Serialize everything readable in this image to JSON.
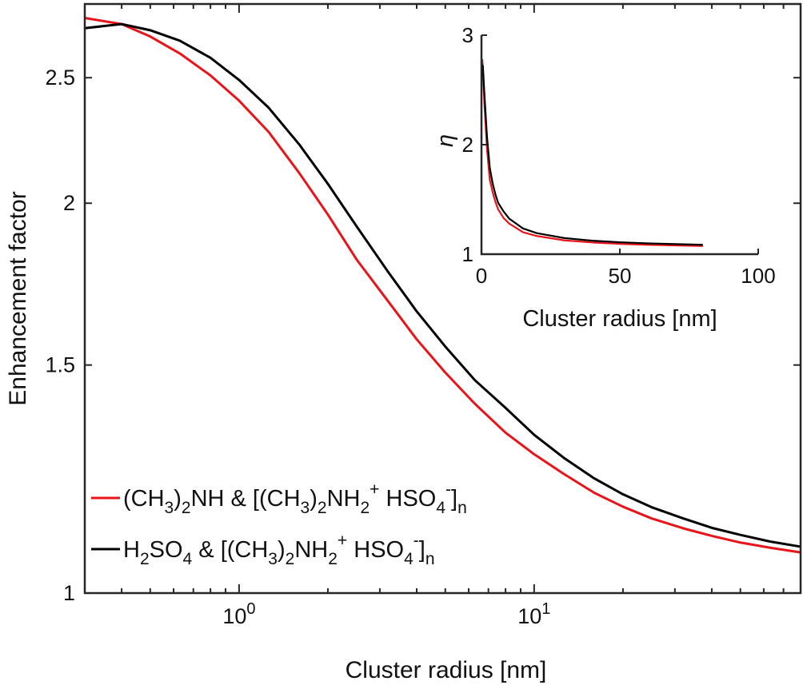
{
  "colors": {
    "red": "#e8141a",
    "black": "#000000",
    "axis": "#262626"
  },
  "main": {
    "ylabel": "Enhancement factor",
    "xlabel": "Cluster radius [nm]",
    "xscale": "log",
    "yscale": "log",
    "xlim": [
      0.3,
      80
    ],
    "ylim": [
      1,
      2.85
    ],
    "xticks": [
      {
        "value": 1,
        "base": "10",
        "exp": "0"
      },
      {
        "value": 10,
        "base": "10",
        "exp": "1"
      }
    ],
    "yticks": [
      {
        "value": 1,
        "label": "1"
      },
      {
        "value": 1.5,
        "label": "1.5"
      },
      {
        "value": 2,
        "label": "2"
      },
      {
        "value": 2.5,
        "label": "2.5"
      }
    ]
  },
  "legend": {
    "placement": "lower-left",
    "entries": [
      {
        "color_key": "red",
        "parts": [
          [
            "(CH",
            "n"
          ],
          [
            "3",
            "sub"
          ],
          [
            ")",
            "n"
          ],
          [
            "2",
            "sub"
          ],
          [
            "NH & [(CH",
            "n"
          ],
          [
            "3",
            "sub"
          ],
          [
            ")",
            "n"
          ],
          [
            "2",
            "sub"
          ],
          [
            "NH",
            "n"
          ],
          [
            "2",
            "sub"
          ],
          [
            "+",
            "sup"
          ],
          [
            " HSO",
            "n"
          ],
          [
            "4",
            "sub"
          ],
          [
            "-",
            "sup"
          ],
          [
            "]",
            "n"
          ],
          [
            "n",
            "sub"
          ]
        ]
      },
      {
        "color_key": "black",
        "parts": [
          [
            "H",
            "n"
          ],
          [
            "2",
            "sub"
          ],
          [
            "SO",
            "n"
          ],
          [
            "4",
            "sub"
          ],
          [
            " & [(CH",
            "n"
          ],
          [
            "3",
            "sub"
          ],
          [
            ")",
            "n"
          ],
          [
            "2",
            "sub"
          ],
          [
            "NH",
            "n"
          ],
          [
            "2",
            "sub"
          ],
          [
            "+",
            "sup"
          ],
          [
            " HSO",
            "n"
          ],
          [
            "4",
            "sub"
          ],
          [
            "-",
            "sup"
          ],
          [
            "]",
            "n"
          ],
          [
            "n",
            "sub"
          ]
        ]
      }
    ]
  },
  "inset": {
    "ylabel": "η",
    "xlabel": "Cluster radius [nm]",
    "xlim": [
      0,
      100
    ],
    "ylim": [
      1,
      3
    ],
    "xticks": [
      {
        "value": 0,
        "label": "0"
      },
      {
        "value": 50,
        "label": "50"
      },
      {
        "value": 100,
        "label": "100"
      }
    ],
    "yticks": [
      {
        "value": 1,
        "label": "1"
      },
      {
        "value": 2,
        "label": "2"
      },
      {
        "value": 3,
        "label": "3"
      }
    ]
  },
  "chart_data": [
    {
      "type": "line",
      "title": "",
      "xlabel": "Cluster radius [nm]",
      "ylabel": "Enhancement factor",
      "x_scale": "log",
      "y_scale": "log",
      "xlim": [
        0.3,
        80
      ],
      "ylim": [
        1,
        2.85
      ],
      "legend_placement": "lower-left",
      "series": [
        {
          "name": "(CH3)2NH & [(CH3)2NH2+ HSO4-]n",
          "color": "#e8141a",
          "x": [
            0.3,
            0.4,
            0.5,
            0.63,
            0.8,
            1.0,
            1.26,
            1.6,
            2.0,
            2.5,
            3.2,
            4.0,
            5.0,
            6.3,
            8.0,
            10,
            12.6,
            16,
            20,
            25,
            32,
            40,
            50,
            63,
            80
          ],
          "y": [
            2.78,
            2.75,
            2.69,
            2.61,
            2.51,
            2.4,
            2.27,
            2.11,
            1.96,
            1.81,
            1.68,
            1.57,
            1.48,
            1.4,
            1.33,
            1.28,
            1.236,
            1.195,
            1.166,
            1.142,
            1.122,
            1.107,
            1.094,
            1.084,
            1.075
          ]
        },
        {
          "name": "H2SO4 & [(CH3)2NH2+ HSO4-]n",
          "color": "#000000",
          "x": [
            0.3,
            0.4,
            0.5,
            0.63,
            0.8,
            1.0,
            1.26,
            1.6,
            2.0,
            2.5,
            3.2,
            4.0,
            5.0,
            6.3,
            8.0,
            10,
            12.6,
            16,
            20,
            25,
            32,
            40,
            50,
            63,
            80
          ],
          "y": [
            2.73,
            2.75,
            2.72,
            2.67,
            2.59,
            2.49,
            2.37,
            2.22,
            2.07,
            1.92,
            1.77,
            1.65,
            1.55,
            1.46,
            1.39,
            1.325,
            1.272,
            1.226,
            1.192,
            1.165,
            1.142,
            1.123,
            1.109,
            1.096,
            1.086
          ]
        }
      ]
    },
    {
      "type": "line",
      "title": "",
      "xlabel": "Cluster radius [nm]",
      "ylabel": "η",
      "xlim": [
        0,
        100
      ],
      "ylim": [
        1,
        3
      ],
      "series": [
        {
          "color": "#e8141a",
          "x": [
            0.3,
            0.5,
            1,
            2,
            3,
            4,
            5,
            6,
            8,
            10,
            15,
            20,
            30,
            40,
            50,
            60,
            70,
            80
          ],
          "y": [
            2.78,
            2.69,
            2.4,
            1.96,
            1.68,
            1.57,
            1.48,
            1.41,
            1.33,
            1.28,
            1.2,
            1.166,
            1.126,
            1.107,
            1.094,
            1.086,
            1.08,
            1.075
          ]
        },
        {
          "color": "#000000",
          "x": [
            0.3,
            0.5,
            1,
            2,
            3,
            4,
            5,
            6,
            8,
            10,
            15,
            20,
            30,
            40,
            50,
            60,
            70,
            80
          ],
          "y": [
            2.73,
            2.72,
            2.49,
            2.07,
            1.79,
            1.65,
            1.55,
            1.47,
            1.39,
            1.325,
            1.235,
            1.192,
            1.147,
            1.123,
            1.109,
            1.099,
            1.092,
            1.086
          ]
        }
      ]
    }
  ]
}
